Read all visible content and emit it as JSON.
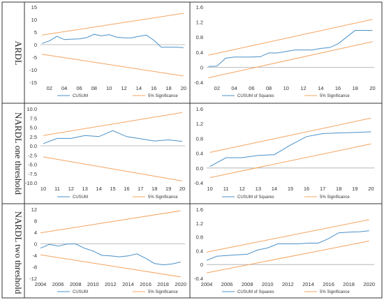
{
  "row_labels": [
    "ARDL",
    "NARDL one threshold",
    "NARDL two threshold"
  ],
  "colors": {
    "series": "#4a90c8",
    "bounds": "#f4a460",
    "border": "#333333",
    "text": "#333333"
  },
  "chart_data": [
    {
      "type": "line",
      "row": 0,
      "col": 0,
      "ylim": [
        -15,
        15
      ],
      "yticks": [
        15,
        10,
        5,
        0,
        -5,
        -10,
        -15
      ],
      "xlim": [
        0.8,
        20.2
      ],
      "xticks": [
        2,
        4,
        6,
        8,
        10,
        12,
        14,
        16,
        18,
        20
      ],
      "xtick_labels": [
        "02",
        "04",
        "06",
        "08",
        "10",
        "12",
        "14",
        "16",
        "18",
        "20"
      ],
      "series": [
        {
          "name": "CUSUM",
          "role": "stat",
          "x": [
            1,
            2,
            3,
            4,
            5,
            6,
            7,
            8,
            9,
            10,
            11,
            12,
            13,
            14,
            15,
            16,
            17,
            18,
            19,
            20
          ],
          "y": [
            0.5,
            1.5,
            3.3,
            2.0,
            2.2,
            2.3,
            2.8,
            4.1,
            3.5,
            4.0,
            3.0,
            2.7,
            2.7,
            3.3,
            3.8,
            1.8,
            -1.0,
            -1.0,
            -1.0,
            -1.2
          ]
        },
        {
          "name": "5% Significance",
          "role": "upper",
          "x": [
            1,
            20
          ],
          "y": [
            3.8,
            12.5
          ]
        },
        {
          "name": "",
          "role": "lower",
          "x": [
            1,
            20
          ],
          "y": [
            -3.8,
            -12.5
          ]
        }
      ]
    },
    {
      "type": "line",
      "row": 0,
      "col": 1,
      "ylim": [
        -0.4,
        1.6
      ],
      "yticks": [
        1.6,
        1.2,
        0.8,
        0.4,
        0.0,
        -0.4
      ],
      "ytick_labels": [
        "1.6",
        "1.2",
        "0.8",
        "0.4",
        "0",
        "-0.4"
      ],
      "xlim": [
        0.8,
        20.2
      ],
      "xticks": [
        2,
        4,
        6,
        8,
        10,
        12,
        14,
        16,
        18,
        20
      ],
      "xtick_labels": [
        "02",
        "04",
        "06",
        "08",
        "10",
        "12",
        "14",
        "16",
        "18",
        "20"
      ],
      "series": [
        {
          "name": "CUSUM of Squares",
          "role": "stat",
          "x": [
            1,
            2,
            3,
            4,
            5,
            6,
            7,
            8,
            9,
            10,
            11,
            12,
            13,
            14,
            15,
            16,
            17,
            18,
            19,
            20
          ],
          "y": [
            0.02,
            0.03,
            0.24,
            0.27,
            0.27,
            0.27,
            0.28,
            0.38,
            0.38,
            0.42,
            0.46,
            0.46,
            0.46,
            0.5,
            0.52,
            0.62,
            0.8,
            0.98,
            0.98,
            0.98
          ]
        },
        {
          "name": "5% Significance",
          "role": "upper",
          "x": [
            1,
            20
          ],
          "y": [
            0.32,
            1.27
          ]
        },
        {
          "name": "",
          "role": "lower",
          "x": [
            1,
            20
          ],
          "y": [
            -0.28,
            0.68
          ]
        }
      ]
    },
    {
      "type": "line",
      "row": 1,
      "col": 0,
      "ylim": [
        -10,
        10
      ],
      "yticks": [
        10,
        7.5,
        5,
        2.5,
        0,
        -2.5,
        -5,
        -7.5,
        -10
      ],
      "ytick_labels": [
        "10.0",
        "7.5",
        "5.0",
        "2.5",
        "0.0",
        "-2.5",
        "-5.0",
        "-7.5",
        "-10.0"
      ],
      "xlim": [
        9.8,
        20.2
      ],
      "xticks": [
        10,
        11,
        12,
        13,
        14,
        15,
        16,
        17,
        18,
        19,
        20
      ],
      "xtick_labels": [
        "10",
        "11",
        "12",
        "13",
        "14",
        "15",
        "16",
        "17",
        "18",
        "19",
        "20"
      ],
      "series": [
        {
          "name": "CUSUM",
          "role": "stat",
          "x": [
            10,
            11,
            12,
            13,
            14,
            15,
            16,
            17,
            18,
            19,
            20
          ],
          "y": [
            0.6,
            2.0,
            2.0,
            2.8,
            2.5,
            4.1,
            2.5,
            1.9,
            1.3,
            1.6,
            1.2
          ]
        },
        {
          "name": "5% Significance",
          "role": "upper",
          "x": [
            10,
            20
          ],
          "y": [
            2.8,
            9.0
          ]
        },
        {
          "name": "",
          "role": "lower",
          "x": [
            10,
            20
          ],
          "y": [
            -3.0,
            -9.5
          ]
        }
      ]
    },
    {
      "type": "line",
      "row": 1,
      "col": 1,
      "ylim": [
        -0.4,
        1.6
      ],
      "yticks": [
        1.6,
        1.2,
        0.8,
        0.4,
        0.0,
        -0.4
      ],
      "ytick_labels": [
        "1.6",
        "1.2",
        "0.8",
        "0.4",
        "0.0",
        "-0.4"
      ],
      "xlim": [
        9.8,
        20.2
      ],
      "xticks": [
        10,
        11,
        12,
        13,
        14,
        15,
        16,
        17,
        18,
        19,
        20
      ],
      "xtick_labels": [
        "10",
        "11",
        "12",
        "13",
        "14",
        "15",
        "16",
        "17",
        "18",
        "19",
        "20"
      ],
      "series": [
        {
          "name": "CUSUM of Squares",
          "role": "stat",
          "x": [
            10,
            11,
            12,
            13,
            14,
            15,
            16,
            17,
            18,
            19,
            20
          ],
          "y": [
            0.04,
            0.28,
            0.28,
            0.34,
            0.36,
            0.62,
            0.85,
            0.93,
            0.95,
            0.96,
            0.98
          ]
        },
        {
          "name": "5% Significance",
          "role": "upper",
          "x": [
            10,
            20
          ],
          "y": [
            0.42,
            1.35
          ]
        },
        {
          "name": "",
          "role": "lower",
          "x": [
            10,
            20
          ],
          "y": [
            -0.26,
            0.65
          ]
        }
      ]
    },
    {
      "type": "line",
      "row": 2,
      "col": 0,
      "ylim": [
        -12,
        12
      ],
      "yticks": [
        12,
        8,
        4,
        0,
        -4,
        -8,
        -12
      ],
      "xlim": [
        2004,
        2020.5
      ],
      "xticks": [
        2004,
        2006,
        2008,
        2010,
        2012,
        2014,
        2016,
        2018,
        2020
      ],
      "xtick_labels": [
        "2004",
        "2006",
        "2008",
        "2010",
        "2012",
        "2014",
        "2016",
        "2018",
        "2020"
      ],
      "series": [
        {
          "name": "CUSUM",
          "role": "stat",
          "x": [
            2004,
            2005,
            2006,
            2007,
            2008,
            2009,
            2010,
            2011,
            2012,
            2013,
            2014,
            2015,
            2016,
            2017,
            2018,
            2019,
            2020
          ],
          "y": [
            -1.5,
            -0.2,
            -0.8,
            -0.1,
            0.0,
            -1.5,
            -2.5,
            -4.0,
            -4.2,
            -4.5,
            -4.2,
            -3.5,
            -5.0,
            -6.8,
            -7.3,
            -7.0,
            -6.3
          ]
        },
        {
          "name": "5% Significance",
          "role": "upper",
          "x": [
            2004,
            2020
          ],
          "y": [
            3.8,
            11.5
          ]
        },
        {
          "name": "",
          "role": "lower",
          "x": [
            2004,
            2020
          ],
          "y": [
            -3.8,
            -11.5
          ]
        }
      ]
    },
    {
      "type": "line",
      "row": 2,
      "col": 1,
      "ylim": [
        -0.4,
        1.6
      ],
      "yticks": [
        1.6,
        1.2,
        0.8,
        0.4,
        0.0,
        -0.4
      ],
      "xlim": [
        2004,
        2020.5
      ],
      "xticks": [
        2004,
        2006,
        2008,
        2010,
        2012,
        2014,
        2016,
        2018,
        2020
      ],
      "xtick_labels": [
        "2004",
        "2006",
        "2008",
        "2010",
        "2012",
        "2014",
        "2016",
        "2018",
        "2020"
      ],
      "series": [
        {
          "name": "CUSUM of Squares",
          "role": "stat",
          "x": [
            2004,
            2005,
            2006,
            2007,
            2008,
            2009,
            2010,
            2011,
            2012,
            2013,
            2014,
            2015,
            2016,
            2017,
            2018,
            2019,
            2020
          ],
          "y": [
            0.12,
            0.24,
            0.26,
            0.28,
            0.3,
            0.42,
            0.48,
            0.6,
            0.6,
            0.6,
            0.62,
            0.62,
            0.75,
            0.92,
            0.94,
            0.95,
            0.98
          ]
        },
        {
          "name": "5% Significance",
          "role": "upper",
          "x": [
            2004,
            2020
          ],
          "y": [
            0.36,
            1.3
          ]
        },
        {
          "name": "",
          "role": "lower",
          "x": [
            2004,
            2020
          ],
          "y": [
            -0.24,
            0.68
          ]
        }
      ]
    }
  ]
}
